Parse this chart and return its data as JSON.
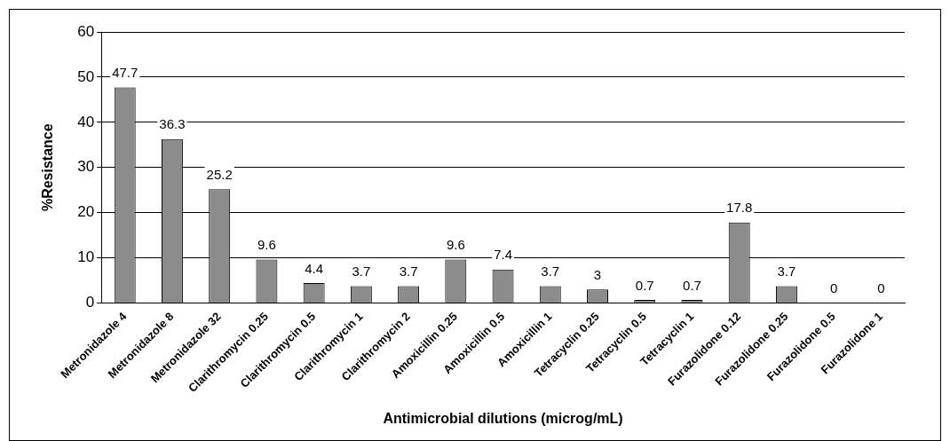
{
  "chart_data": {
    "type": "bar",
    "categories": [
      "Metronidazole 4",
      "Metronidazole 8",
      "Metronidazole 32",
      "Clarithromycin 0.25",
      "Clarithromycin 0.5",
      "Clarithromycin 1",
      "Clarithromycin 2",
      "Amoxicillin 0.25",
      "Amoxicillin 0.5",
      "Amoxicillin 1",
      "Tetracyclin 0.25",
      "Tetracyclin 0.5",
      "Tetracyclin 1",
      "Furazolidone 0.12",
      "Furazolidone 0.25",
      "Furazolidone 0.5",
      "Furazolidone 1"
    ],
    "values": [
      47.7,
      36.3,
      25.2,
      9.6,
      4.4,
      3.7,
      3.7,
      9.6,
      7.4,
      3.7,
      3,
      0.7,
      0.7,
      17.8,
      3.7,
      0,
      0
    ],
    "color": "#8c8c8c",
    "xlabel": "Antimicrobial dilutions (microg/mL)",
    "ylabel": "%Resistance",
    "ylim": [
      0,
      60
    ],
    "yticks": [
      0,
      10,
      20,
      30,
      40,
      50,
      60
    ],
    "grid": "y",
    "legend": false,
    "data_labels": true
  }
}
